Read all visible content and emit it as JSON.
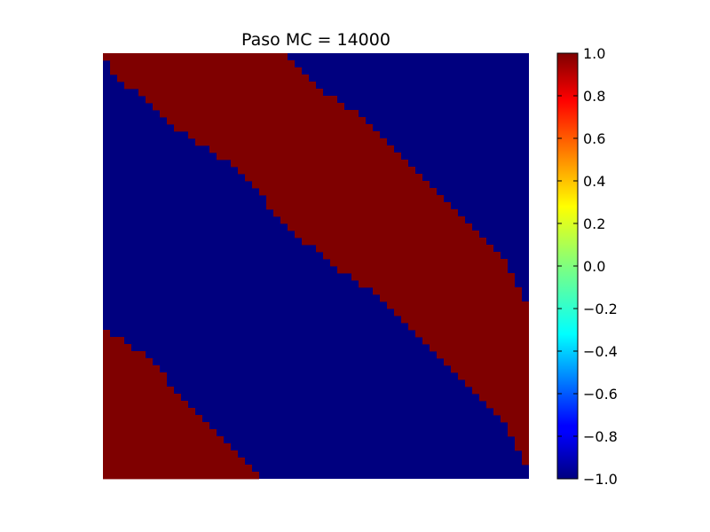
{
  "chart_data": {
    "type": "heatmap",
    "title": "Paso MC = 14000",
    "colormap": "jet",
    "vmin": -1.0,
    "vmax": 1.0,
    "colors": {
      "low": "#00007f",
      "high": "#7f0000"
    },
    "axes_visible": false,
    "boundaries": {
      "comment_units": "row index 0..60 (top to bottom) mapped to column boundary 0..60 (left to right)",
      "upper_band_left": [
        [
          0,
          0
        ],
        [
          3,
          1
        ],
        [
          5,
          4
        ],
        [
          7,
          6
        ],
        [
          9,
          8
        ],
        [
          11,
          11
        ],
        [
          13,
          14
        ],
        [
          15,
          17
        ],
        [
          17,
          19
        ],
        [
          19,
          21
        ],
        [
          21,
          23
        ],
        [
          23,
          24
        ],
        [
          25,
          26
        ],
        [
          27,
          29
        ],
        [
          29,
          31
        ],
        [
          31,
          34
        ],
        [
          33,
          37
        ],
        [
          35,
          39
        ],
        [
          37,
          41
        ],
        [
          39,
          43
        ],
        [
          41,
          45
        ],
        [
          43,
          47
        ],
        [
          45,
          49
        ],
        [
          47,
          51
        ],
        [
          49,
          53
        ],
        [
          51,
          55
        ],
        [
          53,
          57
        ],
        [
          55,
          58
        ],
        [
          57,
          59
        ],
        [
          59,
          60
        ],
        [
          60,
          60
        ]
      ],
      "upper_band_right": [
        [
          0,
          25
        ],
        [
          2,
          27
        ],
        [
          4,
          29
        ],
        [
          6,
          32
        ],
        [
          8,
          35
        ],
        [
          10,
          37
        ],
        [
          12,
          39
        ],
        [
          14,
          41
        ],
        [
          16,
          43
        ],
        [
          18,
          45
        ],
        [
          20,
          47
        ],
        [
          22,
          49
        ],
        [
          24,
          51
        ],
        [
          26,
          53
        ],
        [
          28,
          55
        ],
        [
          30,
          57
        ],
        [
          32,
          58
        ],
        [
          34,
          59
        ],
        [
          36,
          60
        ],
        [
          60,
          60
        ]
      ],
      "lower_left_region": [
        [
          39,
          0
        ],
        [
          40,
          2
        ],
        [
          42,
          5
        ],
        [
          44,
          7
        ],
        [
          46,
          9
        ],
        [
          48,
          10
        ],
        [
          50,
          12
        ],
        [
          52,
          14
        ],
        [
          54,
          16
        ],
        [
          56,
          18
        ],
        [
          58,
          20
        ],
        [
          60,
          23
        ]
      ]
    },
    "colorbar": {
      "ticks": [
        "1.0",
        "0.8",
        "0.6",
        "0.4",
        "0.2",
        "0.0",
        "−0.2",
        "−0.4",
        "−0.6",
        "−0.8",
        "−1.0"
      ]
    }
  }
}
